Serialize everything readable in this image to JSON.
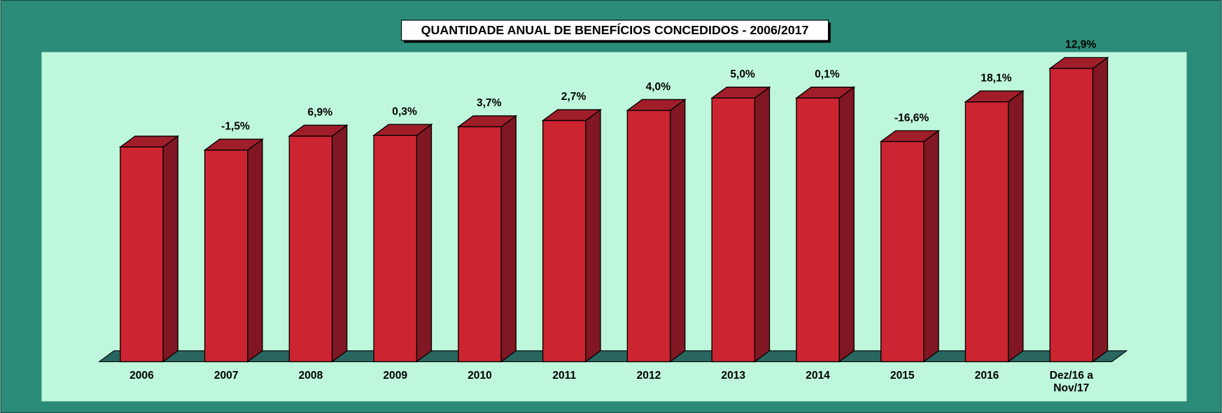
{
  "chart_data": {
    "type": "bar3d",
    "title": "QUANTIDADE ANUAL DE BENEFÍCIOS CONCEDIDOS - 2006/2017",
    "categories": [
      "2006",
      "2007",
      "2008",
      "2009",
      "2010",
      "2011",
      "2012",
      "2013",
      "2014",
      "2015",
      "2016",
      "Dez/16 a Nov/17"
    ],
    "values": [
      276,
      272,
      290,
      291,
      302,
      310,
      323,
      339,
      339,
      283,
      334,
      377
    ],
    "annotations": [
      null,
      "-1,5%",
      "6,9%",
      "0,3%",
      "3,7%",
      "2,7%",
      "4,0%",
      "5,0%",
      "0,1%",
      "-16,6%",
      "18,1%",
      "12,9%"
    ],
    "color": "#cc2531",
    "ylim": [
      0,
      400
    ]
  }
}
